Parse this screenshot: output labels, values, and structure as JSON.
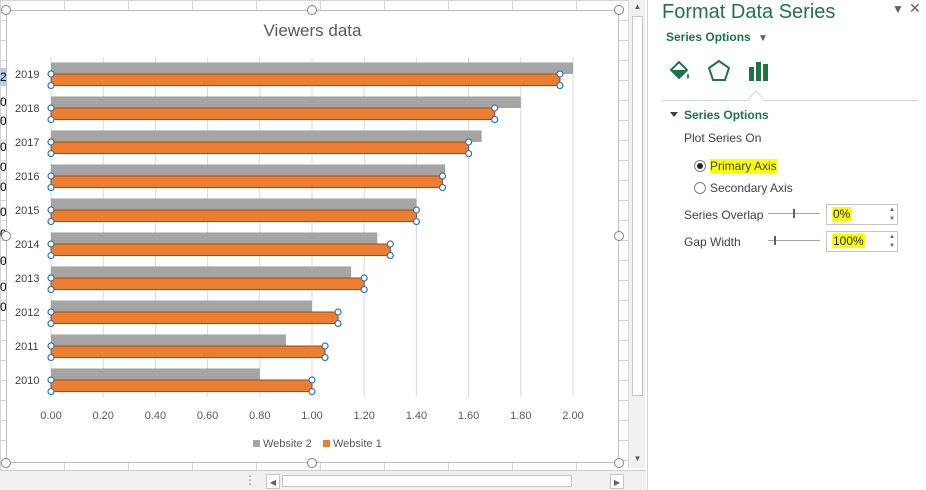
{
  "sheet": {
    "row_fragments": [
      "2",
      "0",
      "0",
      "0",
      "0",
      "0",
      "0",
      "0",
      "0",
      "0",
      "0"
    ]
  },
  "chart_data": {
    "type": "bar",
    "orientation": "horizontal",
    "title": "Viewers data",
    "categories": [
      "2010",
      "2011",
      "2012",
      "2013",
      "2014",
      "2015",
      "2016",
      "2017",
      "2018",
      "2019"
    ],
    "series": [
      {
        "name": "Website 2",
        "color": "#a5a5a5",
        "values": [
          0.8,
          0.9,
          1.0,
          1.15,
          1.25,
          1.4,
          1.51,
          1.65,
          1.8,
          2.0
        ]
      },
      {
        "name": "Website 1",
        "color": "#ed7d31",
        "values": [
          1.0,
          1.05,
          1.1,
          1.2,
          1.3,
          1.4,
          1.5,
          1.6,
          1.7,
          1.95
        ]
      }
    ],
    "xlim": [
      0,
      2.0
    ],
    "xticks": [
      "0.00",
      "0.20",
      "0.40",
      "0.60",
      "0.80",
      "1.00",
      "1.20",
      "1.40",
      "1.60",
      "1.80",
      "2.00"
    ],
    "gridlines": true,
    "legend_position": "bottom",
    "selected_series": "Website 1"
  },
  "pane": {
    "title": "Format Data Series",
    "dropdown_label": "Series Options",
    "icons": [
      "fill-line-icon",
      "effects-pentagon-icon",
      "series-options-bars-icon"
    ],
    "section_title": "Series Options",
    "plot_series_on": "Plot Series On",
    "primary_axis": "Primary Axis",
    "secondary_axis": "Secondary Axis",
    "primary_selected": true,
    "series_overlap_label": "Series Overlap",
    "series_overlap_value": "0%",
    "gap_width_label": "Gap Width",
    "gap_width_value": "100%",
    "colors": {
      "accent": "#217346",
      "highlight": "#ffff00"
    }
  }
}
